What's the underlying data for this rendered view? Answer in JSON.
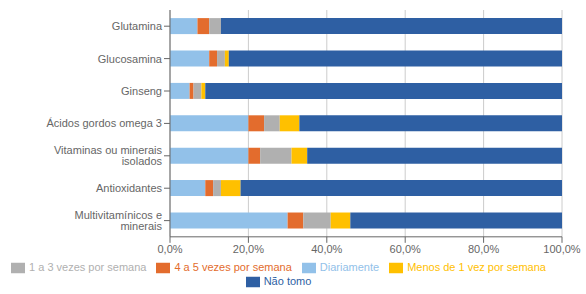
{
  "chart_data": {
    "type": "bar",
    "orientation": "horizontal",
    "stacked": true,
    "categories": [
      "Glutamina",
      "Glucosamina",
      "Ginseng",
      "Ácidos gordos omega 3",
      "Vitaminas ou minerais isolados",
      "Antioxidantes",
      "Multivitamínicos e minerais"
    ],
    "series": [
      {
        "name": "Diariamente",
        "color": "#92c1e9",
        "values": [
          7.0,
          10.0,
          5.0,
          20.0,
          20.0,
          9.0,
          30.0
        ]
      },
      {
        "name": "4 a 5 vezes por semana",
        "color": "#e36c2d",
        "values": [
          3.0,
          2.0,
          1.0,
          4.0,
          3.0,
          2.0,
          4.0
        ]
      },
      {
        "name": "1 a 3 vezes por semana",
        "color": "#b0b0b0",
        "values": [
          3.0,
          2.0,
          2.0,
          4.0,
          8.0,
          2.0,
          7.0
        ]
      },
      {
        "name": "Menos de 1 vez por semana",
        "color": "#ffc000",
        "values": [
          0.0,
          1.0,
          1.0,
          5.0,
          4.0,
          5.0,
          5.0
        ]
      },
      {
        "name": "Não tomo",
        "color": "#2e5fa3",
        "values": [
          87.0,
          85.0,
          91.0,
          67.0,
          65.0,
          82.0,
          54.0
        ]
      }
    ],
    "xlim": [
      0,
      100
    ],
    "xticks": [
      {
        "value": 0,
        "label": "0,0%"
      },
      {
        "value": 20,
        "label": "20,0%"
      },
      {
        "value": 40,
        "label": "40,0%"
      },
      {
        "value": 60,
        "label": "60,0%"
      },
      {
        "value": 80,
        "label": "80,0%"
      },
      {
        "value": 100,
        "label": "100,0%"
      }
    ],
    "grid": true,
    "legend": "bottom"
  }
}
